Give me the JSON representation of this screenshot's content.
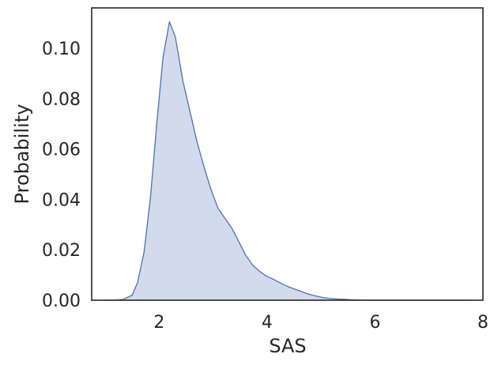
{
  "chart_data": {
    "type": "area",
    "title": "",
    "xlabel": "SAS",
    "ylabel": "Probability",
    "xlim": [
      0.75,
      8.0
    ],
    "ylim": [
      0.0,
      0.116
    ],
    "xticks": [
      2,
      4,
      6,
      8
    ],
    "yticks": [
      0.0,
      0.02,
      0.04,
      0.06,
      0.08,
      0.1
    ],
    "xtick_labels": [
      "2",
      "4",
      "6",
      "8"
    ],
    "ytick_labels": [
      "0.00",
      "0.02",
      "0.04",
      "0.06",
      "0.08",
      "0.10"
    ],
    "grid": false,
    "legend": "none",
    "series": [
      {
        "fill_color": "#d1dbec",
        "line_color": "#4c72b0",
        "x": [
          1.0,
          1.17,
          1.33,
          1.5,
          1.6,
          1.72,
          1.84,
          1.96,
          2.07,
          2.19,
          2.3,
          2.44,
          2.57,
          2.7,
          2.83,
          2.96,
          3.09,
          3.22,
          3.35,
          3.47,
          3.6,
          3.73,
          3.86,
          3.99,
          4.12,
          4.25,
          4.38,
          4.5,
          4.63,
          4.76,
          4.9,
          5.03,
          5.16,
          5.29,
          5.42,
          5.55,
          5.7,
          5.9,
          6.1,
          6.5,
          7.0,
          7.5,
          7.75
        ],
        "y": [
          0.0,
          0.0,
          0.0003,
          0.002,
          0.007,
          0.019,
          0.041,
          0.071,
          0.096,
          0.1105,
          0.1045,
          0.087,
          0.075,
          0.063,
          0.053,
          0.044,
          0.0365,
          0.0325,
          0.0285,
          0.0235,
          0.018,
          0.014,
          0.0115,
          0.0095,
          0.0083,
          0.0068,
          0.0055,
          0.0045,
          0.0035,
          0.0025,
          0.0017,
          0.0011,
          0.0007,
          0.0005,
          0.0004,
          0.0002,
          0.0001,
          0.0,
          0.0,
          0.0,
          0.0,
          0.0,
          0.0
        ]
      }
    ]
  }
}
